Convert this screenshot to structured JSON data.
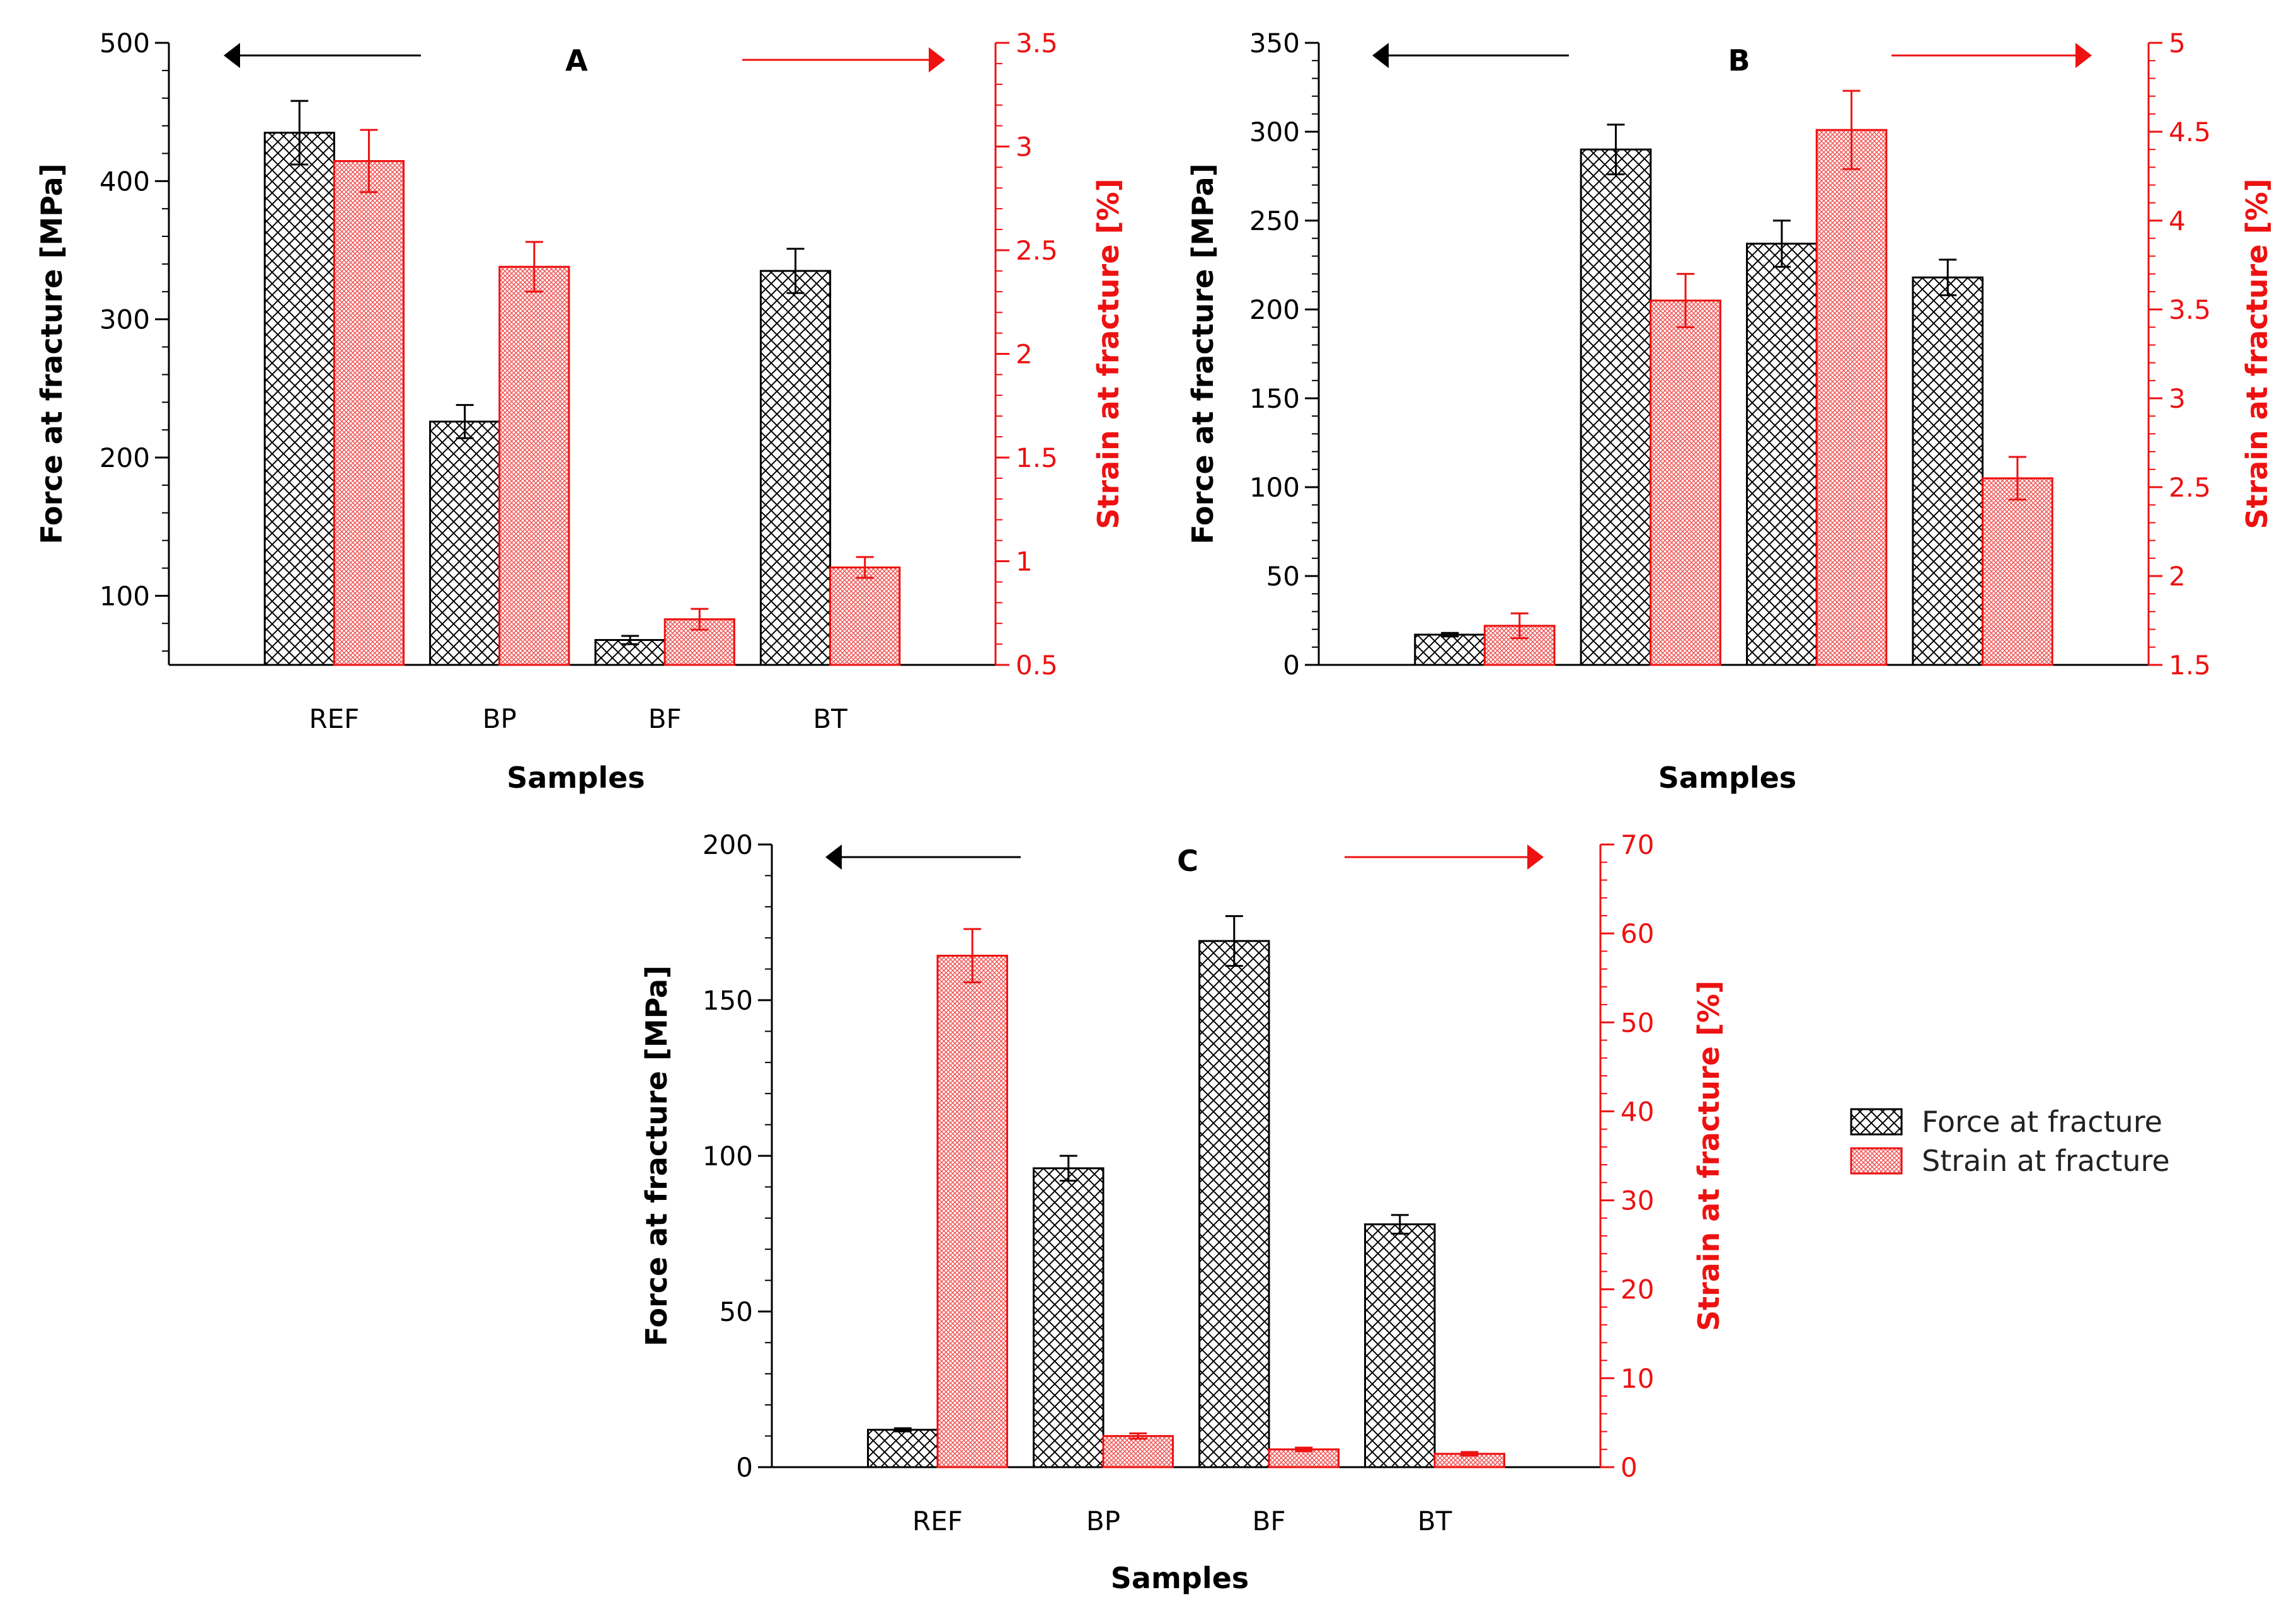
{
  "colors": {
    "force": "#000000",
    "strain": "#ee1111",
    "strain_fill": "#f6a0a0"
  },
  "legend": {
    "force_label": "Force at fracture",
    "strain_label": "Strain at fracture"
  },
  "chart_data": [
    {
      "type": "bar",
      "panel": "A",
      "categories": [
        "REF",
        "BP",
        "BF",
        "BT"
      ],
      "xlabel": "Samples",
      "ylabel_left": "Force at fracture [MPa]",
      "ylabel_right": "Strain at fracture [%]",
      "left_axis": {
        "min": 50,
        "max": 500,
        "ticks": [
          100,
          200,
          300,
          400,
          500
        ]
      },
      "right_axis": {
        "min": 0.5,
        "max": 3.5,
        "ticks": [
          0.5,
          1,
          1.5,
          2,
          2.5,
          3,
          3.5
        ],
        "tick_labels": [
          "0.5",
          "1",
          "1.5",
          "2",
          "2.5",
          "3",
          "3.5"
        ]
      },
      "series": [
        {
          "name": "Force at fracture",
          "axis": "left",
          "values": [
            435,
            226,
            68,
            335
          ],
          "errors": [
            23,
            12,
            3,
            16
          ]
        },
        {
          "name": "Strain at fracture",
          "axis": "right",
          "values": [
            2.93,
            2.42,
            0.72,
            0.97
          ],
          "errors": [
            0.15,
            0.12,
            0.05,
            0.05
          ]
        }
      ]
    },
    {
      "type": "bar",
      "panel": "B",
      "categories": [
        "",
        "",
        "",
        ""
      ],
      "xlabel": "Samples",
      "ylabel_left": "Force at fracture [MPa]",
      "ylabel_right": "Strain at fracture [%]",
      "left_axis": {
        "min": 0,
        "max": 350,
        "ticks": [
          0,
          50,
          100,
          150,
          200,
          250,
          300,
          350
        ]
      },
      "right_axis": {
        "min": 1.5,
        "max": 5,
        "ticks": [
          1.5,
          2,
          2.5,
          3,
          3.5,
          4,
          4.5,
          5
        ],
        "tick_labels": [
          "1.5",
          "2",
          "2.5",
          "3",
          "3.5",
          "4",
          "4.5",
          "5"
        ]
      },
      "series": [
        {
          "name": "Force at fracture",
          "axis": "left",
          "values": [
            17,
            290,
            237,
            218
          ],
          "errors": [
            1,
            14,
            13,
            10
          ]
        },
        {
          "name": "Strain at fracture",
          "axis": "right",
          "values": [
            1.72,
            3.55,
            4.51,
            2.55
          ],
          "errors": [
            0.07,
            0.15,
            0.22,
            0.12
          ]
        }
      ]
    },
    {
      "type": "bar",
      "panel": "C",
      "categories": [
        "REF",
        "BP",
        "BF",
        "BT"
      ],
      "xlabel": "Samples",
      "ylabel_left": "Force at fracture [MPa]",
      "ylabel_right": "Strain at fracture [%]",
      "left_axis": {
        "min": 0,
        "max": 200,
        "ticks": [
          0,
          50,
          100,
          150,
          200
        ]
      },
      "right_axis": {
        "min": 0,
        "max": 70,
        "ticks": [
          0,
          10,
          20,
          30,
          40,
          50,
          60,
          70
        ],
        "tick_labels": [
          "0",
          "10",
          "20",
          "30",
          "40",
          "50",
          "60",
          "70"
        ]
      },
      "series": [
        {
          "name": "Force at fracture",
          "axis": "left",
          "values": [
            12,
            96,
            169,
            78
          ],
          "errors": [
            0.5,
            4,
            8,
            3
          ]
        },
        {
          "name": "Strain at fracture",
          "axis": "right",
          "values": [
            57.5,
            3.5,
            2,
            1.5
          ],
          "errors": [
            3,
            0.3,
            0.2,
            0.2
          ]
        }
      ]
    }
  ]
}
